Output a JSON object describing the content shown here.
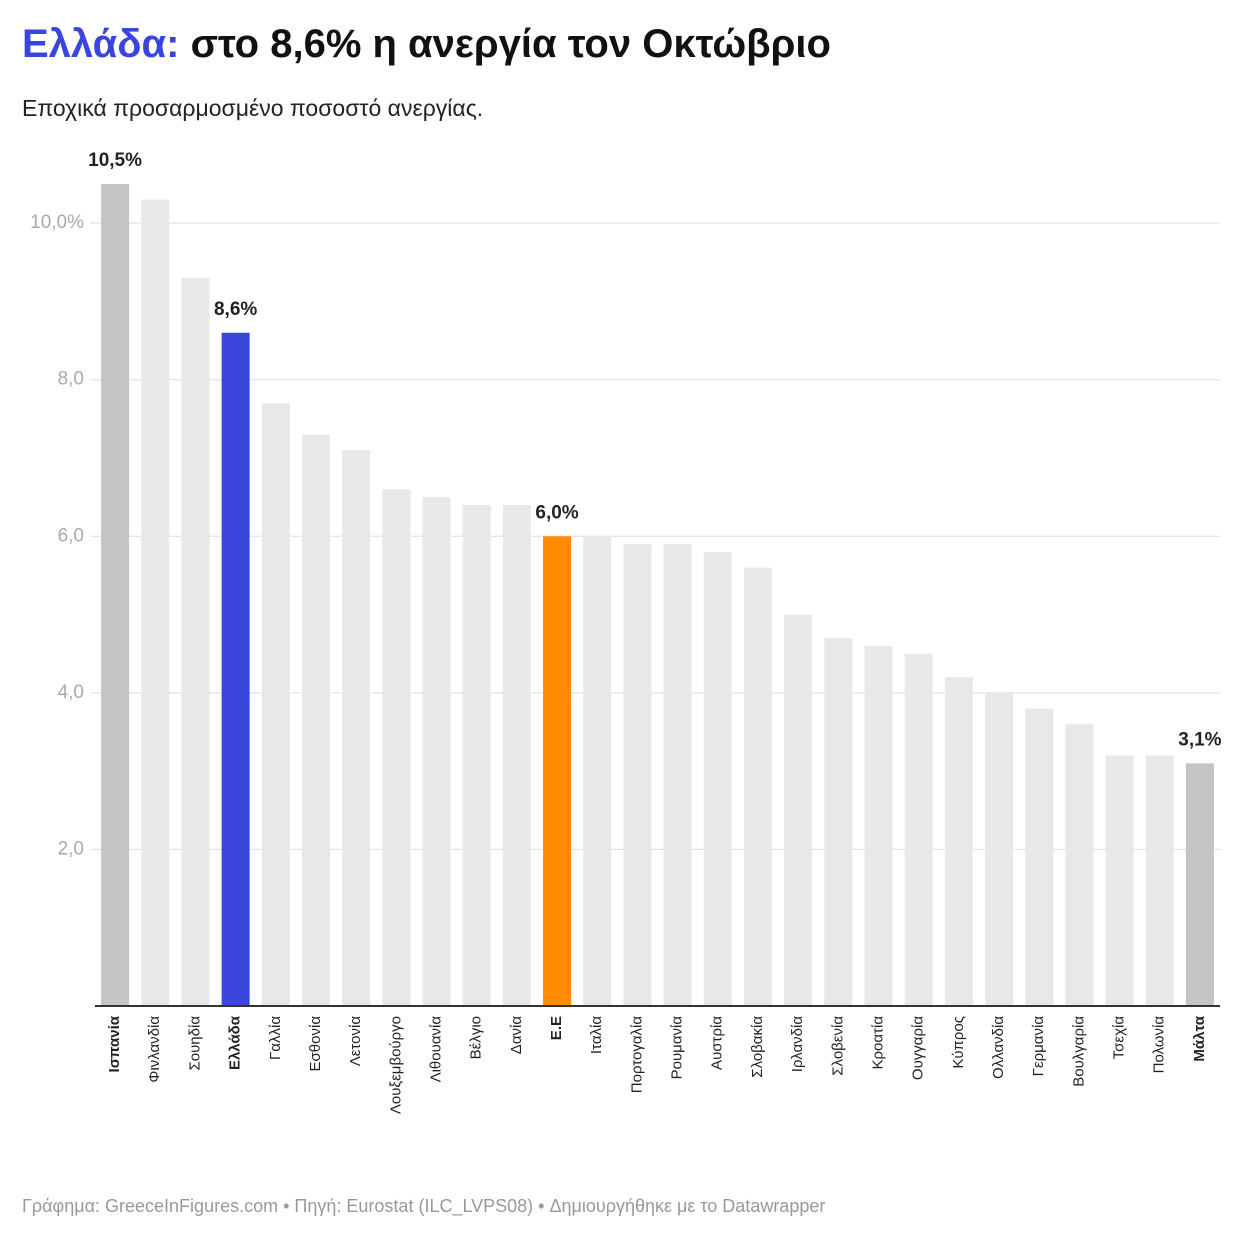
{
  "chart_data": {
    "type": "bar",
    "title_highlight": "Ελλάδα:",
    "title": "στο 8,6% η ανεργία τον Οκτώβριο",
    "subtitle": "Εποχικά προσαρμοσμένο ποσοστό ανεργίας.",
    "footer": "Γράφημα: GreeceInFigures.com • Πηγή: Eurostat (ILC_LVPS08) • Δημιουργήθηκε με το Datawrapper",
    "categories": [
      "Ισπανία",
      "Φινλανδία",
      "Σουηδία",
      "Ελλάδα",
      "Γαλλία",
      "Εσθονία",
      "Λετονία",
      "Λουξεμβούργο",
      "Λιθουανία",
      "Βέλγιο",
      "Δανία",
      "Ε.Ε",
      "Ιταλία",
      "Πορτογαλία",
      "Ρουμανία",
      "Αυστρία",
      "Σλοβακία",
      "Ιρλανδία",
      "Σλοβενία",
      "Κροατία",
      "Ουγγαρία",
      "Κύπρος",
      "Ολλανδία",
      "Γερμανία",
      "Βουλγαρία",
      "Τσεχία",
      "Πολωνία",
      "Μάλτα"
    ],
    "values": [
      10.5,
      10.3,
      9.3,
      8.6,
      7.7,
      7.3,
      7.1,
      6.6,
      6.5,
      6.4,
      6.4,
      6.0,
      6.0,
      5.9,
      5.9,
      5.8,
      5.6,
      5.0,
      4.7,
      4.6,
      4.5,
      4.2,
      4.0,
      3.8,
      3.6,
      3.2,
      3.2,
      3.1
    ],
    "value_labels": [
      "10,5%",
      null,
      null,
      "8,6%",
      null,
      null,
      null,
      null,
      null,
      null,
      null,
      "6,0%",
      null,
      null,
      null,
      null,
      null,
      null,
      null,
      null,
      null,
      null,
      null,
      null,
      null,
      null,
      null,
      "3,1%"
    ],
    "colors": [
      "#c4c4c4",
      "#e8e8e8",
      "#e8e8e8",
      "#3a45dc",
      "#e8e8e8",
      "#e8e8e8",
      "#e8e8e8",
      "#e8e8e8",
      "#e8e8e8",
      "#e8e8e8",
      "#e8e8e8",
      "#ff8c00",
      "#e8e8e8",
      "#e8e8e8",
      "#e8e8e8",
      "#e8e8e8",
      "#e8e8e8",
      "#e8e8e8",
      "#e8e8e8",
      "#e8e8e8",
      "#e8e8e8",
      "#e8e8e8",
      "#e8e8e8",
      "#e8e8e8",
      "#e8e8e8",
      "#e8e8e8",
      "#e8e8e8",
      "#c4c4c4"
    ],
    "title_color": "#3a45dc",
    "ylim": [
      0,
      10.5
    ],
    "yticks": [
      {
        "value": 2,
        "label": "2,0"
      },
      {
        "value": 4,
        "label": "4,0"
      },
      {
        "value": 6,
        "label": "6,0"
      },
      {
        "value": 8,
        "label": "8,0"
      },
      {
        "value": 10,
        "label": "10,0%"
      }
    ],
    "grid": true
  }
}
